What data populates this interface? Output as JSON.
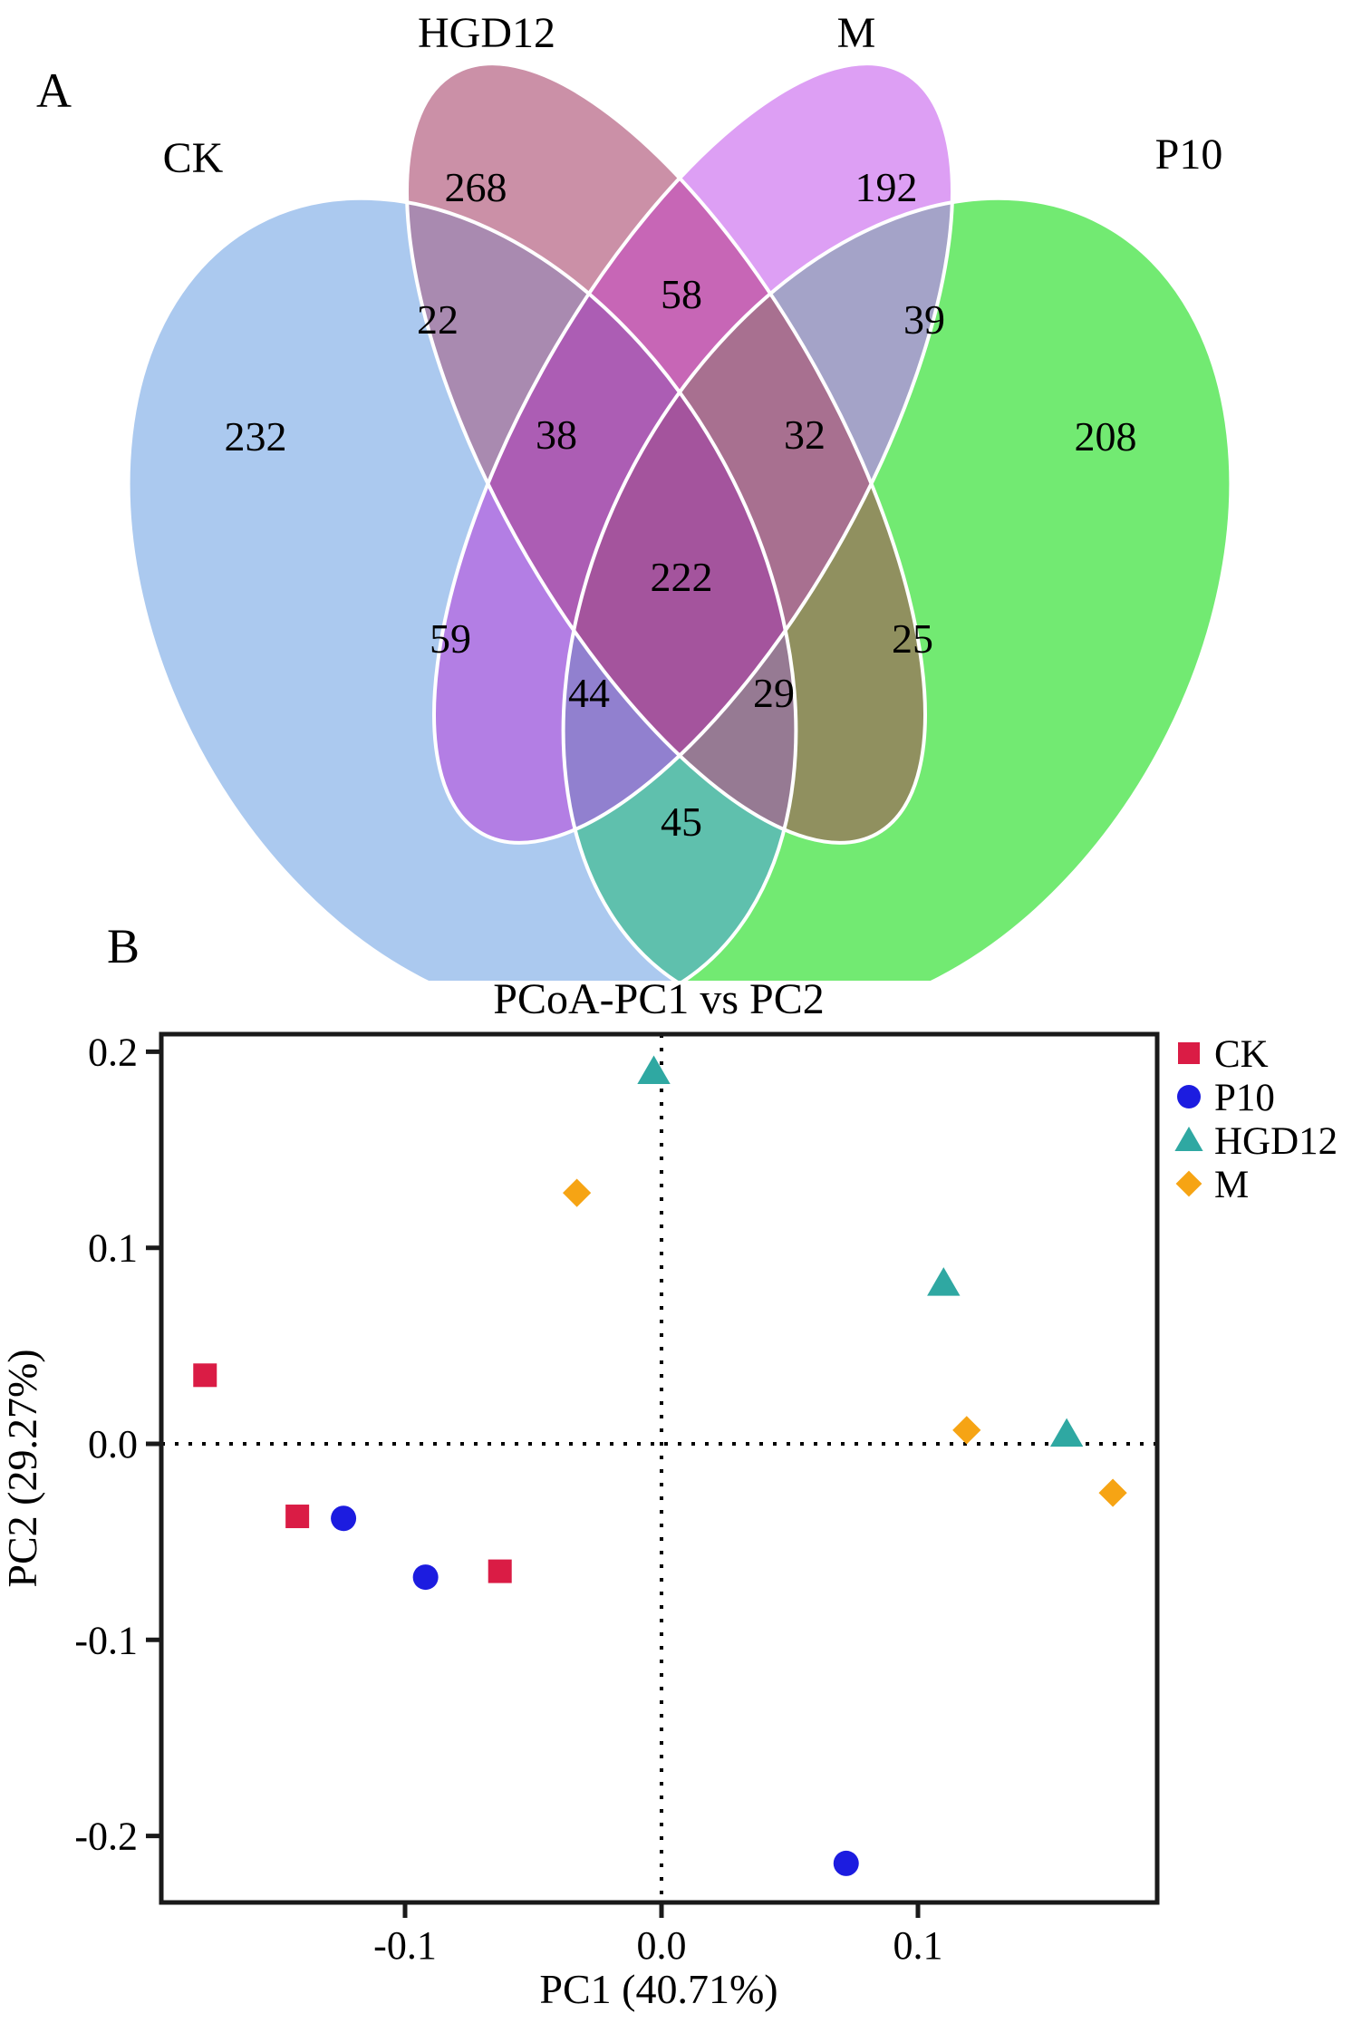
{
  "figure": {
    "panel_a_label": "A",
    "panel_b_label": "B"
  },
  "venn": {
    "sets": [
      {
        "id": "ck",
        "label": "CK",
        "label_color": "#6b93e6",
        "fill": "#abc9ef"
      },
      {
        "id": "hgd12",
        "label": "HGD12",
        "label_color": "#a63a57",
        "fill": "#cb90a7"
      },
      {
        "id": "m",
        "label": "M",
        "label_color": "#c45bf0",
        "fill": "#dd9ff4"
      },
      {
        "id": "p10",
        "label": "P10",
        "label_color": "#2ee02e",
        "fill": "#72ea72"
      }
    ],
    "region_colors": {
      "ck_hgd12": "#a98ab0",
      "hgd12_m": "#c766b6",
      "m_p10": "#a4a3c8",
      "ck_m": "#b37ee4",
      "hgd12_p10": "#90905f",
      "ck_p10": "#5fc0ad",
      "ck_hgd12_m": "#ac5db4",
      "hgd12_m_p10": "#a87090",
      "ck_m_p10": "#9180cf",
      "ck_hgd12_p10": "#967a93",
      "all": "#a4549d"
    },
    "counts": {
      "ck": "232",
      "hgd12": "268",
      "m": "192",
      "p10": "208",
      "ck_hgd12": "22",
      "hgd12_m": "58",
      "m_p10": "39",
      "ck_hgd12_m": "38",
      "hgd12_m_p10": "32",
      "all": "222",
      "ck_m": "59",
      "hgd12_p10": "25",
      "ck_m_p10": "44",
      "ck_hgd12_p10": "29",
      "ck_p10": "45"
    }
  },
  "chart_data": {
    "type": "scatter",
    "title": "PCoA-PC1 vs PC2",
    "xlabel": "PC1 (40.71%)",
    "ylabel": "PC2 (29.27%)",
    "xlim": [
      -0.195,
      0.193
    ],
    "ylim": [
      -0.234,
      0.209
    ],
    "xticks": [
      -0.1,
      0.0,
      0.1
    ],
    "yticks": [
      0.2,
      0.1,
      0.0,
      -0.1,
      -0.2
    ],
    "zero_lines": true,
    "grid": false,
    "legend_position": "right",
    "series": [
      {
        "name": "CK",
        "marker": "square",
        "color": "#da1c45",
        "points": [
          [
            -0.178,
            0.035
          ],
          [
            -0.142,
            -0.037
          ],
          [
            -0.063,
            -0.065
          ]
        ]
      },
      {
        "name": "P10",
        "marker": "circle",
        "color": "#1c1ce0",
        "points": [
          [
            -0.124,
            -0.038
          ],
          [
            -0.092,
            -0.068
          ],
          [
            0.072,
            -0.214
          ]
        ]
      },
      {
        "name": "HGD12",
        "marker": "triangle",
        "color": "#2fa8a2",
        "points": [
          [
            -0.003,
            0.19
          ],
          [
            0.11,
            0.082
          ],
          [
            0.158,
            0.005
          ]
        ]
      },
      {
        "name": "M",
        "marker": "diamond",
        "color": "#f6a414",
        "points": [
          [
            -0.033,
            0.128
          ],
          [
            0.119,
            0.007
          ],
          [
            0.176,
            -0.025
          ]
        ]
      }
    ]
  }
}
